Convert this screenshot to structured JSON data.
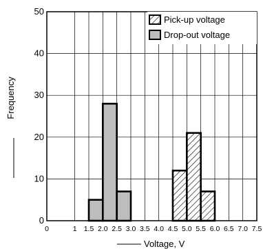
{
  "chart_data": {
    "type": "bar",
    "title": "",
    "xlabel": "Voltage, V",
    "ylabel": "Frequency",
    "xlim": [
      0,
      7.5
    ],
    "ylim": [
      0,
      50
    ],
    "x_ticks": [
      "0",
      "1",
      "1.5",
      "2.0",
      "2.5",
      "3.0",
      "3.5",
      "4.0",
      "4.5",
      "5.0",
      "5.5",
      "6.0",
      "6.5",
      "7.0",
      "7.5"
    ],
    "x_tick_values": [
      0,
      1,
      1.5,
      2.0,
      2.5,
      3.0,
      3.5,
      4.0,
      4.5,
      5.0,
      5.5,
      6.0,
      6.5,
      7.0,
      7.5
    ],
    "y_ticks": [
      "0",
      "10",
      "20",
      "30",
      "40",
      "50"
    ],
    "y_tick_values": [
      0,
      10,
      20,
      30,
      40,
      50
    ],
    "grid": true,
    "legend_position": "top-right",
    "series": [
      {
        "name": "Pick-up voltage",
        "pattern": "hatched",
        "bins": [
          {
            "x0": 4.5,
            "x1": 5.0,
            "value": 12
          },
          {
            "x0": 5.0,
            "x1": 5.5,
            "value": 21
          },
          {
            "x0": 5.5,
            "x1": 6.0,
            "value": 7
          }
        ]
      },
      {
        "name": "Drop-out voltage",
        "pattern": "gray",
        "color": "#bdbdbd",
        "bins": [
          {
            "x0": 1.5,
            "x1": 2.0,
            "value": 5
          },
          {
            "x0": 2.0,
            "x1": 2.5,
            "value": 28
          },
          {
            "x0": 2.5,
            "x1": 3.0,
            "value": 7
          }
        ]
      }
    ]
  }
}
